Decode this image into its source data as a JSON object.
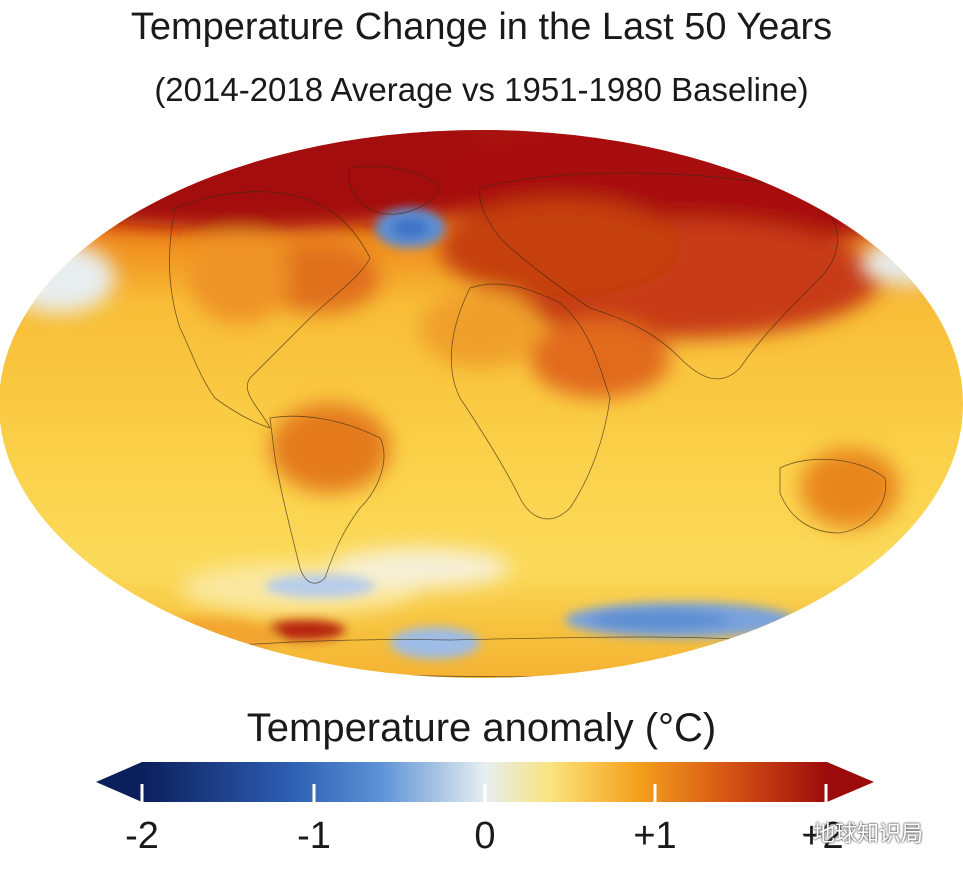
{
  "figure": {
    "title": "Temperature Change in the Last 50 Years",
    "subtitle": "(2014-2018 Average vs 1951-1980 Baseline)"
  },
  "legend": {
    "title": "Temperature anomaly (°C)",
    "ticks": [
      "-2",
      "-1",
      "0",
      "+1",
      "+2"
    ],
    "range": [
      -2,
      2
    ],
    "colors": [
      "#0b1f5c",
      "#2e5fb3",
      "#5d93d6",
      "#e6eef2",
      "#fbe27a",
      "#f5a21d",
      "#d45314",
      "#9c0b0b"
    ]
  },
  "map": {
    "projection": "Robinson",
    "base_color": "#f9c33c",
    "notable_regions": [
      "Arctic warming (deep red)",
      "North Atlantic cold blob (blue)",
      "Southern Ocean cooling (blue)"
    ]
  },
  "watermark": {
    "text": "地球知识局"
  }
}
